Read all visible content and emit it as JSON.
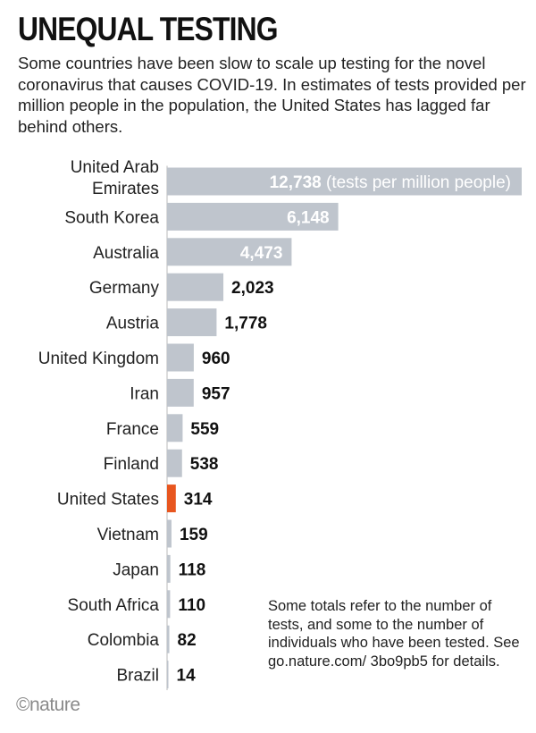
{
  "title": "UNEQUAL TESTING",
  "subtitle": "Some countries have been slow to scale up testing for the novel coronavirus that causes COVID-19. In estimates of tests provided per million people in the population, the United States has lagged far behind others.",
  "note": "Some totals refer to the number of tests, and some to the number of individuals who have been tested. See go.nature.com/ 3bo9pb5 for details.",
  "logo": "©nature",
  "colors": {
    "bar": "#bfc5cd",
    "highlight": "#e8561f",
    "axis": "#bbbbbb"
  },
  "chart_data": {
    "type": "bar",
    "orientation": "horizontal",
    "categories": [
      "United Arab Emirates",
      "South Korea",
      "Australia",
      "Germany",
      "Austria",
      "United Kingdom",
      "Iran",
      "France",
      "Finland",
      "United States",
      "Vietnam",
      "Japan",
      "South Africa",
      "Colombia",
      "Brazil"
    ],
    "category_lines": [
      [
        "United Arab",
        "Emirates"
      ],
      [
        "South Korea"
      ],
      [
        "Australia"
      ],
      [
        "Germany"
      ],
      [
        "Austria"
      ],
      [
        "United Kingdom"
      ],
      [
        "Iran"
      ],
      [
        "France"
      ],
      [
        "Finland"
      ],
      [
        "United States"
      ],
      [
        "Vietnam"
      ],
      [
        "Japan"
      ],
      [
        "South Africa"
      ],
      [
        "Colombia"
      ],
      [
        "Brazil"
      ]
    ],
    "values": [
      12738,
      6148,
      4473,
      2023,
      1778,
      960,
      957,
      559,
      538,
      314,
      159,
      118,
      110,
      82,
      14
    ],
    "value_labels": [
      "12,738",
      "6,148",
      "4,473",
      "2,023",
      "1,778",
      "960",
      "957",
      "559",
      "538",
      "314",
      "159",
      "118",
      "110",
      "82",
      "14"
    ],
    "unit_annotation": "(tests per million people)",
    "highlight": "United States",
    "title": "UNEQUAL TESTING",
    "xlabel": "",
    "ylabel": "",
    "xlim": [
      0,
      12738
    ],
    "grid": false,
    "legend": "none"
  }
}
